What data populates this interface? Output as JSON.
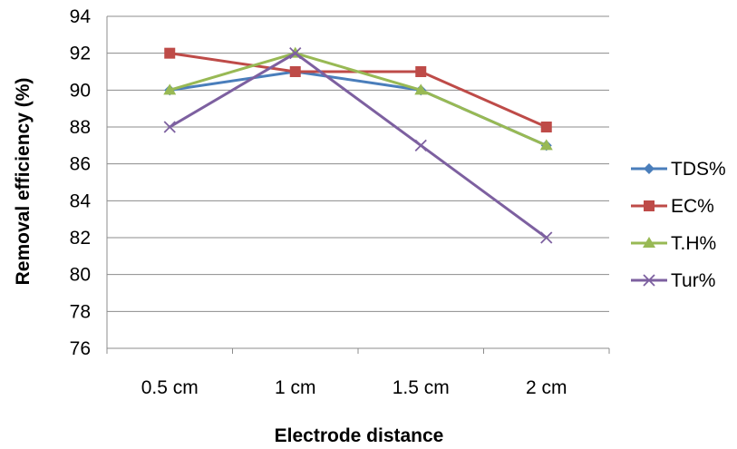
{
  "chart_data": {
    "type": "line",
    "xlabel": "Electrode distance",
    "ylabel": "Removal efficiency (%)",
    "categories": [
      "0.5 cm",
      "1 cm",
      "1.5 cm",
      "2 cm"
    ],
    "ylim": [
      76,
      94
    ],
    "yticks": [
      76,
      78,
      80,
      82,
      84,
      86,
      88,
      90,
      92,
      94
    ],
    "grid": "horizontal",
    "legend_position": "right",
    "series": [
      {
        "name": "TDS%",
        "values": [
          90,
          91,
          90,
          87
        ],
        "color": "#4a7ebb",
        "marker": "diamond"
      },
      {
        "name": "EC%",
        "values": [
          92,
          91,
          91,
          88
        ],
        "color": "#be4b48",
        "marker": "square"
      },
      {
        "name": "T.H%",
        "values": [
          90,
          92,
          90,
          87
        ],
        "color": "#98b954",
        "marker": "triangle"
      },
      {
        "name": "Tur%",
        "values": [
          88,
          92,
          87,
          82
        ],
        "color": "#7d60a0",
        "marker": "x"
      }
    ]
  }
}
